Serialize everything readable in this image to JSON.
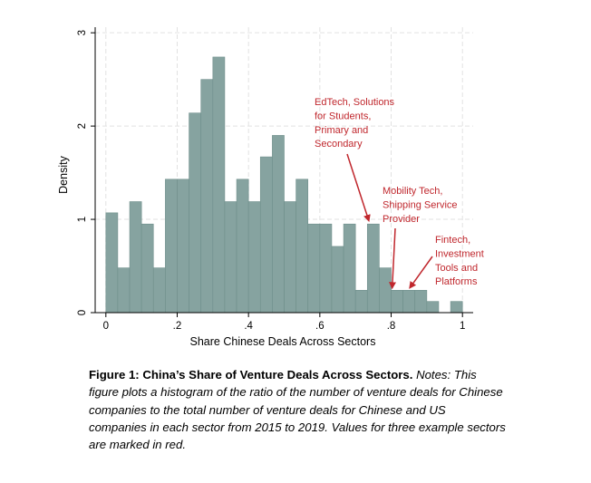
{
  "chart_data": {
    "type": "bar",
    "xlabel": "Share Chinese Deals Across Sectors",
    "ylabel": "Density",
    "xlim": [
      -0.03,
      1.03
    ],
    "ylim": [
      0,
      3.06
    ],
    "x_ticks": [
      {
        "value": 0,
        "label": "0"
      },
      {
        "value": 0.2,
        "label": ".2"
      },
      {
        "value": 0.4,
        "label": ".4"
      },
      {
        "value": 0.6,
        "label": ".6"
      },
      {
        "value": 0.8,
        "label": ".8"
      },
      {
        "value": 1,
        "label": "1"
      }
    ],
    "y_ticks": [
      {
        "value": 0,
        "label": "0"
      },
      {
        "value": 1,
        "label": "1"
      },
      {
        "value": 2,
        "label": "2"
      },
      {
        "value": 3,
        "label": "3"
      }
    ],
    "grid": true,
    "bin_width": 0.0333,
    "bin_starts": [
      0,
      0.0333,
      0.0667,
      0.1,
      0.1333,
      0.1667,
      0.2,
      0.2333,
      0.2667,
      0.3,
      0.3333,
      0.3667,
      0.4,
      0.4333,
      0.4667,
      0.5,
      0.5333,
      0.5667,
      0.6,
      0.6333,
      0.6667,
      0.7,
      0.7333,
      0.7667,
      0.8,
      0.8333,
      0.8667,
      0.9,
      0.9333,
      0.9667
    ],
    "values": [
      1.07,
      0.48,
      1.19,
      0.95,
      0.48,
      1.43,
      1.43,
      2.14,
      2.5,
      2.74,
      1.19,
      1.43,
      1.19,
      1.67,
      1.9,
      1.19,
      1.43,
      0.95,
      0.95,
      0.71,
      0.95,
      0.24,
      0.95,
      0.48,
      0.24,
      0.24,
      0.24,
      0.12,
      0,
      0.12
    ],
    "bar_color": "#86a3a0",
    "annotation_color": "#c0272d",
    "annotations": [
      {
        "lines": [
          "EdTech, Solutions",
          "for Students,",
          "Primary and",
          "Secondary"
        ],
        "x": 0.737,
        "y": 0.97
      },
      {
        "lines": [
          "Mobility Tech,",
          "Shipping Service",
          "Provider"
        ],
        "x": 0.803,
        "y": 0.25
      },
      {
        "lines": [
          "Fintech,",
          "Investment",
          "Tools and",
          "Platforms"
        ],
        "x": 0.853,
        "y": 0.25
      }
    ]
  },
  "caption": {
    "title": "Figure 1: China’s Share of Venture Deals Across Sectors.",
    "notes": "Notes: This figure plots a histogram of the ratio of the number of venture deals for Chinese companies to the total number of venture deals for Chinese and US companies in each sector from 2015 to 2019. Values for three example sectors are marked in red."
  }
}
